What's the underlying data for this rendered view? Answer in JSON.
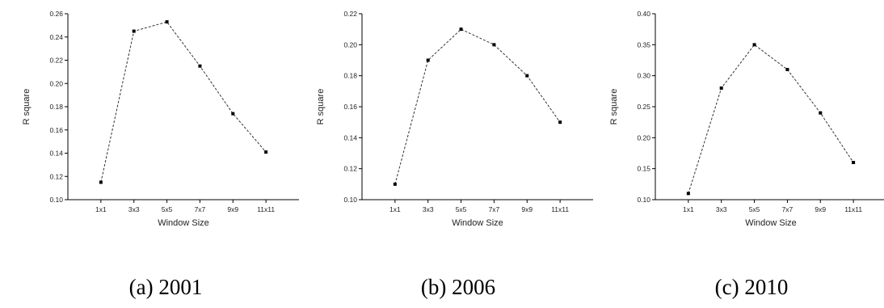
{
  "chart_data": [
    {
      "type": "line",
      "caption": "(a) 2001",
      "xlabel": "Window Size",
      "ylabel": "R square",
      "categories": [
        "1x1",
        "3x3",
        "5x5",
        "7x7",
        "9x9",
        "11x11"
      ],
      "values": [
        0.115,
        0.245,
        0.253,
        0.215,
        0.174,
        0.141
      ],
      "ylim": [
        0.1,
        0.26
      ],
      "yticks": [
        "0.10",
        "0.12",
        "0.14",
        "0.16",
        "0.18",
        "0.20",
        "0.22",
        "0.24",
        "0.26"
      ],
      "grid": false,
      "line_style": "dashed"
    },
    {
      "type": "line",
      "caption": "(b) 2006",
      "xlabel": "Window Size",
      "ylabel": "R square",
      "categories": [
        "1x1",
        "3x3",
        "5x5",
        "7x7",
        "9x9",
        "11x11"
      ],
      "values": [
        0.11,
        0.19,
        0.21,
        0.2,
        0.18,
        0.15
      ],
      "ylim": [
        0.1,
        0.22
      ],
      "yticks": [
        "0.10",
        "0.12",
        "0.14",
        "0.16",
        "0.18",
        "0.20",
        "0.22"
      ],
      "grid": false,
      "line_style": "dashed"
    },
    {
      "type": "line",
      "caption": "(c) 2010",
      "xlabel": "Window Size",
      "ylabel": "R square",
      "categories": [
        "1x1",
        "3x3",
        "5x5",
        "7x7",
        "9x9",
        "11x11"
      ],
      "values": [
        0.11,
        0.28,
        0.35,
        0.31,
        0.24,
        0.16
      ],
      "ylim": [
        0.1,
        0.4
      ],
      "yticks": [
        "0.10",
        "0.15",
        "0.20",
        "0.25",
        "0.30",
        "0.35",
        "0.40"
      ],
      "grid": false,
      "line_style": "dashed"
    }
  ],
  "colors": {
    "line": "#333333",
    "marker": "#000000",
    "axis": "#000000"
  }
}
